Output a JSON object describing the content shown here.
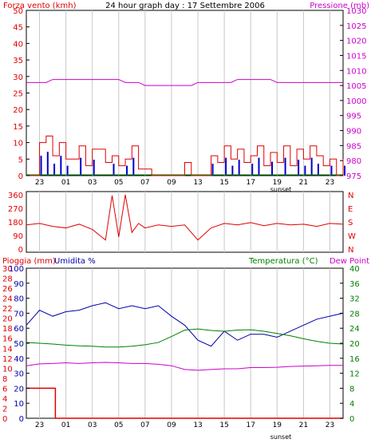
{
  "chart_data": [
    {
      "type": "line",
      "title": "24 hour graph day : 17 Settembre 2006",
      "left_axis_label": "Forza vento (kmh)",
      "right_axis_label": "Pressione (mb)",
      "left_ticks": [
        0,
        5,
        10,
        15,
        20,
        25,
        30,
        35,
        40,
        45,
        50
      ],
      "right_ticks": [
        975,
        980,
        985,
        990,
        995,
        1000,
        1005,
        1010,
        1015,
        1020,
        1025,
        1030
      ],
      "ylim_left": [
        0,
        50
      ],
      "ylim_right": [
        975,
        1030
      ],
      "x_ticks": [
        "23",
        "01",
        "03",
        "05",
        "07",
        "09",
        "13",
        "15",
        "17",
        "19",
        "21",
        "23"
      ],
      "annotation": "sunset",
      "grid": true,
      "colors": {
        "wind": "#e00000",
        "gust": "#0000cc",
        "calm": "#008000",
        "pressure": "#cc00cc"
      },
      "series": [
        {
          "name": "Pressione (mb)",
          "x": [
            0,
            1.5,
            2,
            7,
            7.5,
            8.5,
            9,
            12.5,
            13,
            15.5,
            16,
            18.5,
            19,
            24
          ],
          "y": [
            1006,
            1006,
            1007,
            1007,
            1006,
            1006,
            1005,
            1005,
            1006,
            1006,
            1007,
            1007,
            1006,
            1006
          ]
        },
        {
          "name": "Forza vento (kmh)",
          "x": [
            0,
            1,
            1.5,
            2,
            2.5,
            3,
            4,
            4.5,
            5,
            6,
            6.5,
            7,
            7.5,
            8,
            8.5,
            9.5,
            10,
            10.5,
            11,
            11.5,
            12,
            12.5,
            13,
            14,
            14.5,
            15,
            15.5,
            16,
            16.5,
            17,
            17.5,
            18,
            18.5,
            19,
            19.5,
            20,
            20.5,
            21,
            21.5,
            22,
            22.5,
            23,
            23.5,
            24
          ],
          "y": [
            0,
            10,
            12,
            6,
            10,
            5,
            9,
            3,
            8,
            4,
            6,
            3,
            5,
            9,
            2,
            0,
            0,
            0,
            0,
            0,
            4,
            0,
            0,
            6,
            4,
            9,
            5,
            8,
            4,
            6,
            9,
            3,
            7,
            4,
            9,
            3,
            8,
            5,
            9,
            6,
            3,
            5,
            0,
            5
          ]
        }
      ]
    },
    {
      "type": "line",
      "title": "",
      "left_ticks": [
        0,
        90,
        180,
        270,
        360
      ],
      "right_ticks": [
        "N",
        "W",
        "S",
        "E",
        "N"
      ],
      "ylim_left": [
        0,
        360
      ],
      "grid": true,
      "series": [
        {
          "name": "Direzione vento",
          "x": [
            0,
            1,
            2,
            3,
            4,
            5,
            6,
            6.5,
            7,
            7.5,
            8,
            8.5,
            9,
            10,
            11,
            12,
            13,
            14,
            15,
            16,
            17,
            18,
            19,
            20,
            21,
            22,
            23,
            24
          ],
          "y": [
            160,
            170,
            150,
            140,
            165,
            130,
            60,
            355,
            80,
            360,
            110,
            170,
            140,
            160,
            150,
            160,
            60,
            140,
            170,
            160,
            175,
            155,
            170,
            160,
            165,
            150,
            170,
            165
          ]
        }
      ]
    },
    {
      "type": "line",
      "title": "",
      "labels": [
        "Pioggia (mm)",
        "Umidita %",
        "Temperatura (°C)",
        "Dew Point"
      ],
      "left_ticks_rain": [
        0,
        2,
        4,
        6,
        8,
        10,
        12,
        14,
        16,
        18,
        20,
        22,
        24,
        26,
        28,
        30
      ],
      "left_ticks_humidity": [
        0,
        10,
        20,
        30,
        40,
        50,
        60,
        70,
        80,
        90,
        100
      ],
      "right_ticks_temp": [
        0,
        4,
        8,
        12,
        16,
        20,
        24,
        28,
        32,
        36,
        40
      ],
      "ylim_humidity": [
        0,
        100
      ],
      "ylim_temperature": [
        0,
        40
      ],
      "x_ticks": [
        "23",
        "01",
        "03",
        "05",
        "07",
        "09",
        "13",
        "15",
        "17",
        "19",
        "21",
        "23"
      ],
      "annotation": "sunset",
      "grid": true,
      "colors": {
        "rain": "#e00000",
        "humidity": "#0000aa",
        "temperature": "#008000",
        "dew_point": "#cc00cc"
      },
      "series": [
        {
          "name": "Umidita %",
          "x": [
            0,
            1,
            2,
            3,
            4,
            5,
            6,
            7,
            8,
            9,
            10,
            11,
            12,
            13,
            14,
            15,
            16,
            17,
            18,
            19,
            20,
            21,
            22,
            23,
            24
          ],
          "y": [
            62,
            72,
            68,
            71,
            72,
            75,
            77,
            73,
            75,
            73,
            75,
            68,
            62,
            52,
            48,
            58,
            52,
            56,
            56,
            54,
            58,
            62,
            66,
            68,
            70
          ]
        },
        {
          "name": "Temperatura (°C)",
          "x": [
            0,
            1,
            2,
            3,
            4,
            5,
            6,
            7,
            8,
            9,
            10,
            11,
            12,
            13,
            14,
            15,
            16,
            17,
            18,
            19,
            20,
            21,
            22,
            23,
            24
          ],
          "y": [
            20.2,
            20,
            19.8,
            19.5,
            19.3,
            19.2,
            19,
            19,
            19.2,
            19.6,
            20.2,
            21.8,
            23.5,
            23.8,
            23.4,
            23.2,
            23.5,
            23.6,
            23.2,
            22.6,
            22,
            21.2,
            20.5,
            20,
            19.8
          ]
        },
        {
          "name": "Dew Point",
          "x": [
            0,
            1,
            2,
            3,
            4,
            5,
            6,
            7,
            8,
            9,
            10,
            11,
            12,
            13,
            14,
            15,
            16,
            17,
            18,
            19,
            20,
            21,
            22,
            23,
            24
          ],
          "y": [
            14,
            14.5,
            14.6,
            14.8,
            14.6,
            14.8,
            14.9,
            14.8,
            14.6,
            14.6,
            14.4,
            14,
            13,
            12.8,
            13,
            13.2,
            13.2,
            13.5,
            13.5,
            13.6,
            13.8,
            13.9,
            14,
            14.1,
            14.1
          ]
        },
        {
          "name": "Pioggia (mm)",
          "x": [
            0,
            2.2,
            2.2,
            24
          ],
          "y": [
            6,
            6,
            0,
            0
          ]
        }
      ]
    }
  ]
}
